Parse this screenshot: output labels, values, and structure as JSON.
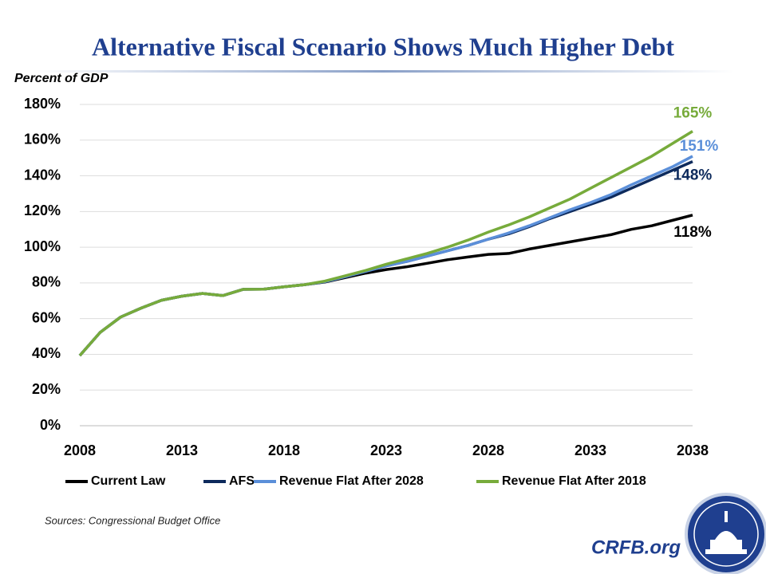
{
  "chart_data": {
    "type": "line",
    "title": "Alternative Fiscal Scenario Shows Much Higher Debt",
    "y_label": "Percent of GDP",
    "source": "Sources: Congressional Budget Office",
    "brand": "CRFB.org",
    "x": [
      2008,
      2009,
      2010,
      2011,
      2012,
      2013,
      2014,
      2015,
      2016,
      2017,
      2018,
      2019,
      2020,
      2021,
      2022,
      2023,
      2024,
      2025,
      2026,
      2027,
      2028,
      2029,
      2030,
      2031,
      2032,
      2033,
      2034,
      2035,
      2036,
      2037,
      2038
    ],
    "xlim": [
      2008,
      2038
    ],
    "xticks": [
      2008,
      2013,
      2018,
      2023,
      2028,
      2033,
      2038
    ],
    "ylim": [
      0,
      180
    ],
    "yticks": [
      {
        "value": 0,
        "label": "0%"
      },
      {
        "value": 20,
        "label": "20%"
      },
      {
        "value": 40,
        "label": "40%"
      },
      {
        "value": 60,
        "label": "60%"
      },
      {
        "value": 80,
        "label": "80%"
      },
      {
        "value": 100,
        "label": "100%"
      },
      {
        "value": 120,
        "label": "120%"
      },
      {
        "value": 140,
        "label": "140%"
      },
      {
        "value": 160,
        "label": "160%"
      },
      {
        "value": 180,
        "label": "180%"
      }
    ],
    "grid": true,
    "legend": "bottom",
    "series": [
      {
        "name": "Current Law",
        "color": "#000000",
        "values": [
          39.3,
          52.3,
          60.9,
          65.9,
          70.3,
          72.6,
          74.1,
          72.9,
          76.4,
          76.5,
          77.8,
          79,
          80.5,
          83,
          85.5,
          87.5,
          89,
          91,
          93,
          94.5,
          96,
          96.5,
          99,
          101,
          103,
          105,
          107,
          110,
          112,
          115,
          118
        ],
        "value_labels": [
          null,
          null,
          null,
          null,
          null,
          null,
          null,
          null,
          null,
          null,
          null,
          null,
          null,
          null,
          null,
          null,
          null,
          null,
          null,
          null,
          null,
          null,
          null,
          null,
          null,
          null,
          null,
          null,
          null,
          null,
          "118%"
        ]
      },
      {
        "name": "AFS",
        "color": "#0d2a5c",
        "values": [
          39.3,
          52.3,
          60.9,
          65.9,
          70.3,
          72.6,
          74.1,
          72.9,
          76.4,
          76.5,
          77.8,
          79,
          80.7,
          83.5,
          86.5,
          89.5,
          92,
          95,
          98,
          101,
          104.5,
          107.5,
          111.5,
          116,
          120,
          124,
          128,
          133,
          138,
          143,
          148
        ],
        "value_labels": [
          null,
          null,
          null,
          null,
          null,
          null,
          null,
          null,
          null,
          null,
          null,
          null,
          null,
          null,
          null,
          null,
          null,
          null,
          null,
          null,
          null,
          null,
          null,
          null,
          null,
          null,
          null,
          null,
          null,
          null,
          "148%"
        ]
      },
      {
        "name": "Revenue Flat After 2028",
        "color": "#5b8fd9",
        "values": [
          39.3,
          52.3,
          60.9,
          65.9,
          70.3,
          72.6,
          74.1,
          72.9,
          76.4,
          76.5,
          77.8,
          79,
          80.7,
          83.5,
          86.5,
          89.5,
          92,
          95,
          98,
          101,
          104.5,
          108,
          112,
          116.5,
          121,
          125,
          129.5,
          135,
          140,
          145,
          151
        ],
        "value_labels": [
          null,
          null,
          null,
          null,
          null,
          null,
          null,
          null,
          null,
          null,
          null,
          null,
          null,
          null,
          null,
          null,
          null,
          null,
          null,
          null,
          null,
          null,
          null,
          null,
          null,
          null,
          null,
          null,
          null,
          null,
          "151%"
        ]
      },
      {
        "name": "Revenue Flat After 2018",
        "color": "#77ab3b",
        "values": [
          39.3,
          52.3,
          60.9,
          65.9,
          70.3,
          72.6,
          74.1,
          72.9,
          76.4,
          76.5,
          77.8,
          79,
          81,
          84,
          87,
          90.5,
          93.5,
          96.5,
          100,
          104,
          108.5,
          112.5,
          117,
          122,
          127,
          133,
          139,
          145,
          151,
          158,
          165
        ],
        "value_labels": [
          null,
          null,
          null,
          null,
          null,
          null,
          null,
          null,
          null,
          null,
          null,
          null,
          null,
          null,
          null,
          null,
          null,
          null,
          null,
          null,
          null,
          null,
          null,
          null,
          null,
          null,
          null,
          null,
          null,
          null,
          "165%"
        ]
      }
    ]
  }
}
